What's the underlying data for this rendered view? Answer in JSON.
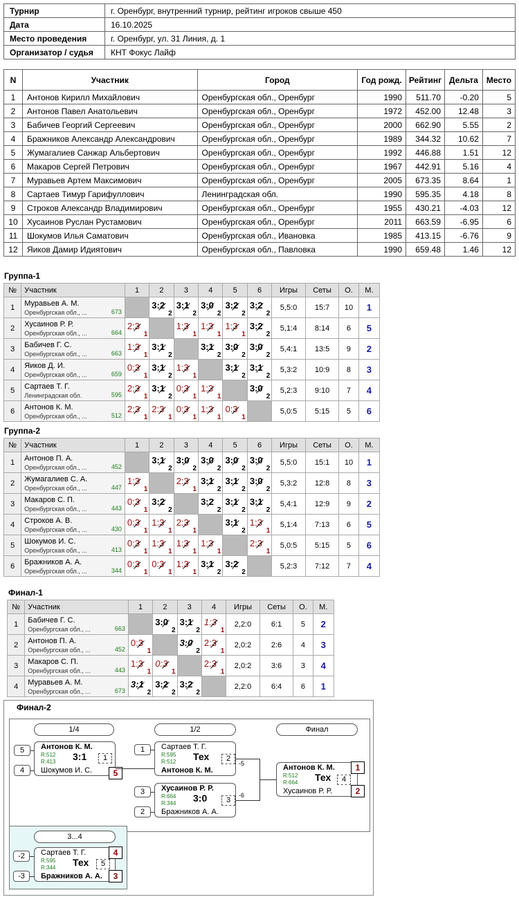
{
  "info": {
    "tournament_label": "Турнир",
    "tournament": "г. Оренбург, внутренний турнир, рейтинг игроков свыше 450",
    "date_label": "Дата",
    "date": "16.10.2025",
    "venue_label": "Место проведения",
    "venue": "г. Оренбург, ул. 31 Линия, д. 1",
    "organizer_label": "Организатор / судья",
    "organizer": "КНТ Фокус Лайф"
  },
  "participants": {
    "headers": [
      "N",
      "Участник",
      "Город",
      "Год рожд.",
      "Рейтинг",
      "Дельта",
      "Место"
    ],
    "rows": [
      [
        "1",
        "Антонов Кирилл Михайлович",
        "Оренбургская обл., Оренбург",
        "1990",
        "511.70",
        "-0.20",
        "5"
      ],
      [
        "2",
        "Антонов Павел Анатольевич",
        "Оренбургская обл., Оренбург",
        "1972",
        "452.00",
        "12.48",
        "3"
      ],
      [
        "3",
        "Бабичев Георгий Сергеевич",
        "Оренбургская обл., Оренбург",
        "2000",
        "662.90",
        "5.55",
        "2"
      ],
      [
        "4",
        "Бражников Александр Александрович",
        "Оренбургская обл., Оренбург",
        "1989",
        "344.32",
        "10.62",
        "7"
      ],
      [
        "5",
        "Жумагалиев Санжар Альбертович",
        "Оренбургская обл., Оренбург",
        "1992",
        "446.88",
        "1.51",
        "12"
      ],
      [
        "6",
        "Макаров Сергей Петрович",
        "Оренбургская обл., Оренбург",
        "1967",
        "442.91",
        "5.16",
        "4"
      ],
      [
        "7",
        "Муравьев Артем Максимович",
        "Оренбургская обл., Оренбург",
        "2005",
        "673.35",
        "8.64",
        "1"
      ],
      [
        "8",
        "Сартаев Тимур Гарифуллович",
        "Ленинградская обл.",
        "1990",
        "595.35",
        "4.18",
        "8"
      ],
      [
        "9",
        "Строков Александр Владимирович",
        "Оренбургская обл., Оренбург",
        "1955",
        "430.21",
        "-4.03",
        "12"
      ],
      [
        "10",
        "Хусаинов Руслан Рустамович",
        "Оренбургская обл., Оренбург",
        "2011",
        "663.59",
        "-6.95",
        "6"
      ],
      [
        "11",
        "Шокумов Илья Саматович",
        "Оренбургская обл., Ивановка",
        "1985",
        "413.15",
        "-6.76",
        "9"
      ],
      [
        "12",
        "Яиков Дамир Идиятович",
        "Оренбургская обл., Павловка",
        "1990",
        "659.48",
        "1.46",
        "12"
      ]
    ]
  },
  "grid_headers": {
    "num": "№",
    "player": "Участник",
    "games": "Игры",
    "sets": "Сеты",
    "points": "О.",
    "place": "М."
  },
  "groups": [
    {
      "title": "Группа-1",
      "players": [
        {
          "num": "1",
          "name": "Муравьев А. М.",
          "city": "Оренбургская обл., ...",
          "rating": "673",
          "cells": [
            null,
            [
              "3:2",
              "2",
              "w"
            ],
            [
              "3:1",
              "2",
              "w"
            ],
            [
              "3:0",
              "2",
              "w"
            ],
            [
              "3:2",
              "2",
              "w"
            ],
            [
              "3:2",
              "2",
              "w"
            ]
          ],
          "games": "5,5:0",
          "sets": "15:7",
          "points": "10",
          "place": "1"
        },
        {
          "num": "2",
          "name": "Хусаинов Р. Р.",
          "city": "Оренбургская обл., ...",
          "rating": "664",
          "cells": [
            [
              "2:3",
              "1",
              "l"
            ],
            null,
            [
              "1:3",
              "1",
              "l"
            ],
            [
              "1:3",
              "1",
              "l"
            ],
            [
              "1:3",
              "1",
              "l"
            ],
            [
              "3:2",
              "2",
              "w"
            ]
          ],
          "games": "5,1:4",
          "sets": "8:14",
          "points": "6",
          "place": "5"
        },
        {
          "num": "3",
          "name": "Бабичев Г. С.",
          "city": "Оренбургская обл., ...",
          "rating": "663",
          "cells": [
            [
              "1:3",
              "1",
              "l"
            ],
            [
              "3:1",
              "2",
              "w"
            ],
            null,
            [
              "3:1",
              "2",
              "w"
            ],
            [
              "3:0",
              "2",
              "w"
            ],
            [
              "3:0",
              "2",
              "w"
            ]
          ],
          "games": "5,4:1",
          "sets": "13:5",
          "points": "9",
          "place": "2"
        },
        {
          "num": "4",
          "name": "Яиков Д. И.",
          "city": "Оренбургская обл., ...",
          "rating": "659",
          "cells": [
            [
              "0:3",
              "1",
              "l"
            ],
            [
              "3:1",
              "2",
              "w"
            ],
            [
              "1:3",
              "1",
              "l"
            ],
            null,
            [
              "3:1",
              "2",
              "w"
            ],
            [
              "3:1",
              "2",
              "w"
            ]
          ],
          "games": "5,3:2",
          "sets": "10:9",
          "points": "8",
          "place": "3"
        },
        {
          "num": "5",
          "name": "Сартаев Т. Г.",
          "city": "Ленинградская обл.",
          "rating": "595",
          "cells": [
            [
              "2:3",
              "1",
              "l"
            ],
            [
              "3:1",
              "2",
              "w"
            ],
            [
              "0:3",
              "1",
              "l"
            ],
            [
              "1:3",
              "1",
              "l"
            ],
            null,
            [
              "3:0",
              "2",
              "w"
            ]
          ],
          "games": "5,2:3",
          "sets": "9:10",
          "points": "7",
          "place": "4"
        },
        {
          "num": "6",
          "name": "Антонов К. М.",
          "city": "Оренбургская обл., ...",
          "rating": "512",
          "cells": [
            [
              "2:3",
              "1",
              "l"
            ],
            [
              "2:3",
              "1",
              "l"
            ],
            [
              "0:3",
              "1",
              "l"
            ],
            [
              "1:3",
              "1",
              "l"
            ],
            [
              "0:3",
              "1",
              "l"
            ],
            null
          ],
          "games": "5,0:5",
          "sets": "5:15",
          "points": "5",
          "place": "6"
        }
      ]
    },
    {
      "title": "Группа-2",
      "players": [
        {
          "num": "1",
          "name": "Антонов П. А.",
          "city": "Оренбургская обл., ...",
          "rating": "452",
          "cells": [
            null,
            [
              "3:1",
              "2",
              "w"
            ],
            [
              "3:0",
              "2",
              "w"
            ],
            [
              "3:0",
              "2",
              "w"
            ],
            [
              "3:0",
              "2",
              "w"
            ],
            [
              "3:0",
              "2",
              "w"
            ]
          ],
          "games": "5,5:0",
          "sets": "15:1",
          "points": "10",
          "place": "1"
        },
        {
          "num": "2",
          "name": "Жумагалиев С. А.",
          "city": "Оренбургская обл., ...",
          "rating": "447",
          "cells": [
            [
              "1:3",
              "1",
              "l"
            ],
            null,
            [
              "2:3",
              "1",
              "l"
            ],
            [
              "3:1",
              "2",
              "w"
            ],
            [
              "3:1",
              "2",
              "w"
            ],
            [
              "3:0",
              "2",
              "w"
            ]
          ],
          "games": "5,3:2",
          "sets": "12:8",
          "points": "8",
          "place": "3"
        },
        {
          "num": "3",
          "name": "Макаров С. П.",
          "city": "Оренбургская обл., ...",
          "rating": "443",
          "cells": [
            [
              "0:3",
              "1",
              "l"
            ],
            [
              "3:2",
              "2",
              "w"
            ],
            null,
            [
              "3:2",
              "2",
              "w"
            ],
            [
              "3:1",
              "2",
              "w"
            ],
            [
              "3:1",
              "2",
              "w"
            ]
          ],
          "games": "5,4:1",
          "sets": "12:9",
          "points": "9",
          "place": "2"
        },
        {
          "num": "4",
          "name": "Строков А. В.",
          "city": "Оренбургская обл., ...",
          "rating": "430",
          "cells": [
            [
              "0:3",
              "1",
              "l"
            ],
            [
              "1:3",
              "1",
              "l"
            ],
            [
              "2:3",
              "1",
              "l"
            ],
            null,
            [
              "3:1",
              "2",
              "w"
            ],
            [
              "1:3",
              "1",
              "l"
            ]
          ],
          "games": "5,1:4",
          "sets": "7:13",
          "points": "6",
          "place": "5"
        },
        {
          "num": "5",
          "name": "Шокумов И. С.",
          "city": "Оренбургская обл., ...",
          "rating": "413",
          "cells": [
            [
              "0:3",
              "1",
              "l"
            ],
            [
              "1:3",
              "1",
              "l"
            ],
            [
              "1:3",
              "1",
              "l"
            ],
            [
              "1:3",
              "1",
              "l"
            ],
            null,
            [
              "2:3",
              "1",
              "l"
            ]
          ],
          "games": "5,0:5",
          "sets": "5:15",
          "points": "5",
          "place": "6"
        },
        {
          "num": "6",
          "name": "Бражников А. А.",
          "city": "Оренбургская обл., ...",
          "rating": "344",
          "cells": [
            [
              "0:3",
              "1",
              "l"
            ],
            [
              "0:3",
              "1",
              "l"
            ],
            [
              "1:3",
              "1",
              "l"
            ],
            [
              "3:1",
              "2",
              "w"
            ],
            [
              "3:2",
              "2",
              "w"
            ],
            null
          ],
          "games": "5,2:3",
          "sets": "7:12",
          "points": "7",
          "place": "4"
        }
      ]
    },
    {
      "title": "Финал-1",
      "players": [
        {
          "num": "1",
          "name": "Бабичев Г. С.",
          "city": "Оренбургская обл., ...",
          "rating": "663",
          "cells": [
            null,
            [
              "3:0",
              "2",
              "w"
            ],
            [
              "3:1",
              "2",
              "w"
            ],
            [
              "1:3",
              "1",
              "li"
            ]
          ],
          "games": "2,2:0",
          "sets": "6:1",
          "points": "5",
          "place": "2"
        },
        {
          "num": "2",
          "name": "Антонов П. А.",
          "city": "Оренбургская обл., ...",
          "rating": "452",
          "cells": [
            [
              "0:3",
              "1",
              "l"
            ],
            null,
            [
              "3:0",
              "2",
              "wi"
            ],
            [
              "2:3",
              "1",
              "l"
            ]
          ],
          "games": "2,0:2",
          "sets": "2:6",
          "points": "4",
          "place": "3"
        },
        {
          "num": "3",
          "name": "Макаров С. П.",
          "city": "Оренбургская обл., ...",
          "rating": "443",
          "cells": [
            [
              "1:3",
              "1",
              "l"
            ],
            [
              "0:3",
              "1",
              "li"
            ],
            null,
            [
              "2:3",
              "1",
              "l"
            ]
          ],
          "games": "2,0:2",
          "sets": "3:6",
          "points": "3",
          "place": "4"
        },
        {
          "num": "4",
          "name": "Муравьев А. М.",
          "city": "Оренбургская обл., ...",
          "rating": "673",
          "cells": [
            [
              "3:1",
              "2",
              "wi"
            ],
            [
              "3:2",
              "2",
              "w"
            ],
            [
              "3:2",
              "2",
              "w"
            ],
            null
          ],
          "games": "2,2:0",
          "sets": "6:4",
          "points": "6",
          "place": "1"
        }
      ]
    }
  ],
  "final2": {
    "title": "Финал-2",
    "rounds": [
      "1/4",
      "1/2",
      "Финал"
    ],
    "third_round": "3...4",
    "qf": {
      "seed1": "5",
      "seed2": "4",
      "p1": "Антонов К. М.",
      "p2": "Шокумов И. С.",
      "r1": "R:512",
      "r2": "R:413",
      "score": "3:1",
      "mno": "1",
      "out": "5"
    },
    "sf1": {
      "seed1": "1",
      "p1": "Сартаев Т. Г.",
      "p2": "Антонов К. М.",
      "r1": "R:595",
      "r2": "R:512",
      "score": "Тех",
      "mno": "2",
      "loss": "-5"
    },
    "sf2": {
      "seed1": "3",
      "seed2": "2",
      "p1": "Хусаинов Р. Р.",
      "p2": "Бражников А. А.",
      "r1": "R:664",
      "r2": "R:344",
      "score": "3:0",
      "mno": "3",
      "loss": "-6"
    },
    "fin": {
      "p1": "Антонов К. М.",
      "p2": "Хусаинов Р. Р.",
      "r1": "R:512",
      "r2": "R:664",
      "score": "Тех",
      "mno": "4",
      "box1": "1",
      "box2": "2"
    },
    "third": {
      "seed1": "-2",
      "seed2": "-3",
      "p1": "Сартаев Т. Г.",
      "p2": "Бражников А. А.",
      "r1": "R:595",
      "r2": "R:344",
      "score": "Тех",
      "mno": "5",
      "box1": "4",
      "box2": "3"
    }
  }
}
